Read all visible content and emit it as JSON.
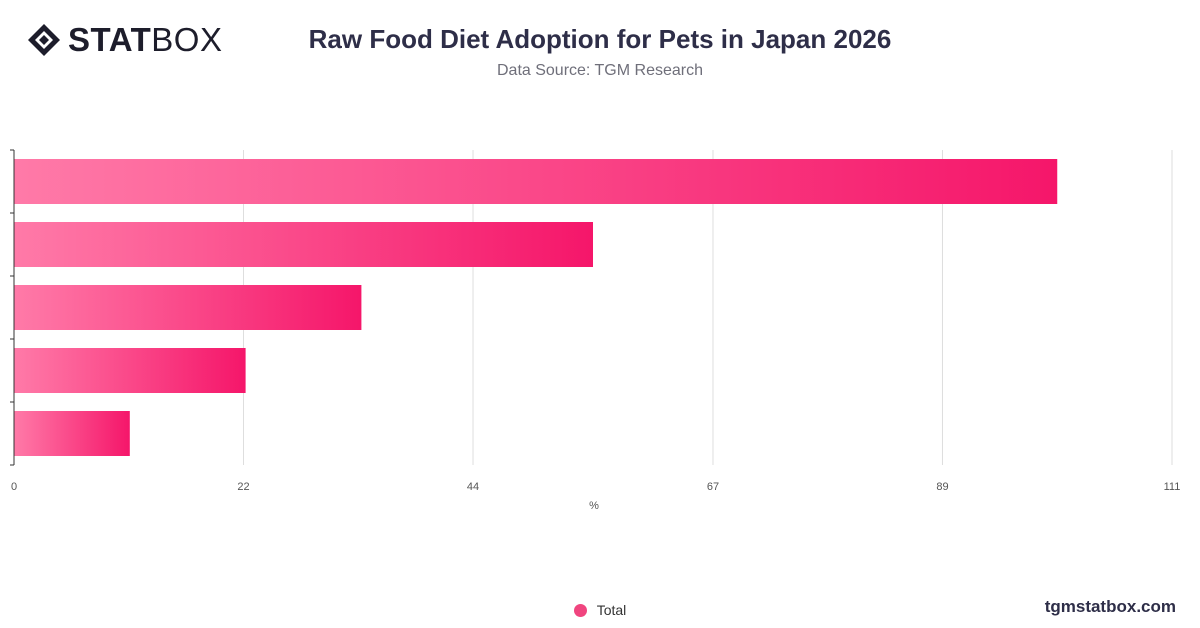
{
  "brand": {
    "logo_bold": "STAT",
    "logo_light": "BOX",
    "watermark": "tgmstatbox.com"
  },
  "header": {
    "title": "Raw Food Diet Adoption for Pets in Japan 2026",
    "subtitle": "Data Source: TGM Research"
  },
  "colors": {
    "bar_start": "#ff7aa8",
    "bar_end": "#f5166a",
    "grid": "#dedede",
    "axis": "#333333"
  },
  "chart_data": {
    "type": "bar",
    "orientation": "horizontal",
    "categories": [
      "",
      "",
      "",
      "",
      ""
    ],
    "series": [
      {
        "name": "Total",
        "values": [
          100,
          55.5,
          33.3,
          22.2,
          11.1
        ]
      }
    ],
    "xlabel": "%",
    "xlim": [
      0,
      111
    ],
    "x_ticks": [
      "0",
      "22",
      "44",
      "67",
      "89",
      "111"
    ],
    "grid": true,
    "legend": "bottom-center"
  }
}
